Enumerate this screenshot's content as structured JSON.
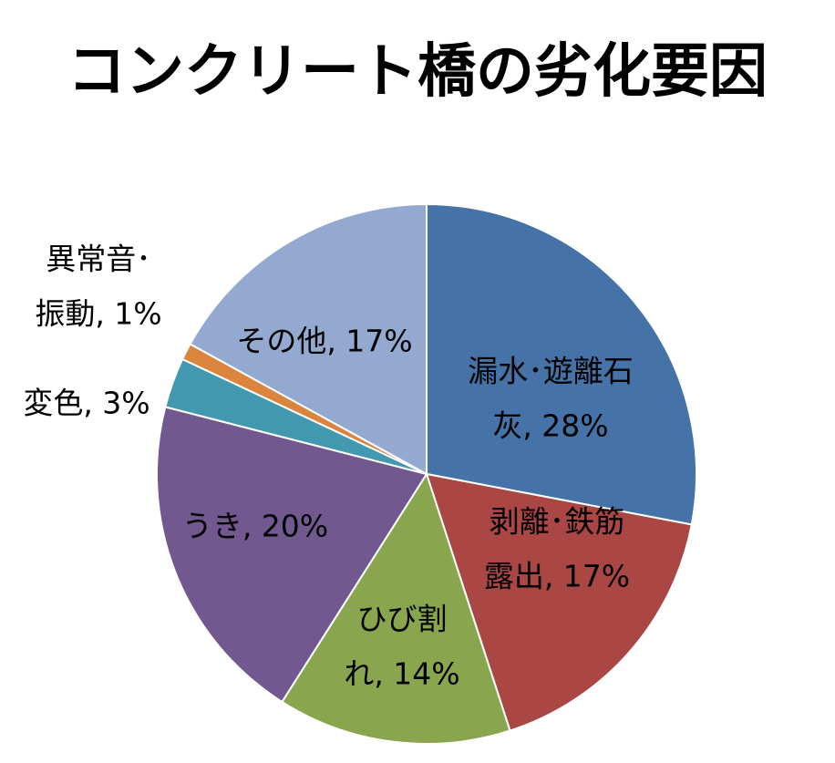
{
  "chart_data": {
    "type": "pie",
    "title": "コンクリート橋の劣化要因",
    "legend": "none",
    "slices": [
      {
        "label_lines": [
          "漏水･遊離石",
          "灰, 28%"
        ],
        "value": 28,
        "color": "#4572a7"
      },
      {
        "label_lines": [
          "剥離･鉄筋",
          "露出, 17%"
        ],
        "value": 17,
        "color": "#aa4643"
      },
      {
        "label_lines": [
          "ひび割",
          "れ, 14%"
        ],
        "value": 14,
        "color": "#89a54e"
      },
      {
        "label_lines": [
          "うき, 20%"
        ],
        "value": 20,
        "color": "#71588f"
      },
      {
        "label_lines": [
          "変色, 3%"
        ],
        "value": 3,
        "color": "#4198af"
      },
      {
        "label_lines": [
          "異常音･",
          "振動, 1%"
        ],
        "value": 1,
        "color": "#db843d"
      },
      {
        "label_lines": [
          "その他, 17%"
        ],
        "value": 17,
        "color": "#93a9cf"
      }
    ]
  }
}
